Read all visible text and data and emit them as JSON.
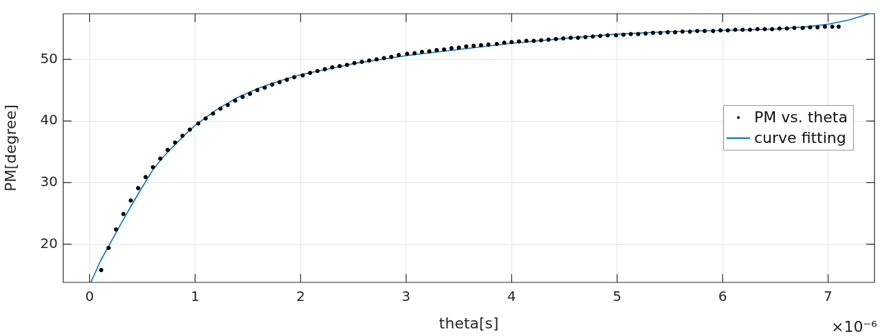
{
  "chart_data": {
    "type": "scatter",
    "xlabel": "theta[s]",
    "ylabel": "PM[degree]",
    "xlim": [
      -0.25,
      7.44
    ],
    "ylim": [
      13.8,
      57.4
    ],
    "xticks": [
      0,
      1,
      2,
      3,
      4,
      5,
      6,
      7
    ],
    "yticks": [
      20,
      30,
      40,
      50
    ],
    "grid": true,
    "legend": "right",
    "annotations": [
      "×10⁻⁶"
    ],
    "series": [
      {
        "name": "PM vs. theta",
        "type": "scatter",
        "marker": "circle",
        "color": "#000000",
        "x": [
          0.11,
          0.18,
          0.25,
          0.32,
          0.39,
          0.46,
          0.53,
          0.6,
          0.67,
          0.74,
          0.81,
          0.88,
          0.95,
          1.03,
          1.1,
          1.17,
          1.24,
          1.31,
          1.38,
          1.45,
          1.52,
          1.59,
          1.66,
          1.73,
          1.8,
          1.87,
          1.94,
          2.02,
          2.09,
          2.16,
          2.23,
          2.3,
          2.37,
          2.44,
          2.51,
          2.58,
          2.65,
          2.72,
          2.79,
          2.86,
          2.93,
          3.01,
          3.08,
          3.15,
          3.22,
          3.29,
          3.36,
          3.43,
          3.5,
          3.57,
          3.64,
          3.71,
          3.78,
          3.86,
          3.93,
          4.0,
          4.07,
          4.14,
          4.21,
          4.28,
          4.35,
          4.42,
          4.49,
          4.56,
          4.63,
          4.7,
          4.77,
          4.84,
          4.91,
          4.99,
          5.06,
          5.13,
          5.2,
          5.27,
          5.34,
          5.41,
          5.48,
          5.55,
          5.62,
          5.69,
          5.76,
          5.83,
          5.91,
          5.98,
          6.05,
          6.12,
          6.19,
          6.26,
          6.33,
          6.4,
          6.47,
          6.54,
          6.61,
          6.68,
          6.76,
          6.83,
          6.9,
          6.97,
          7.04,
          7.1
        ],
        "values": [
          15.8,
          19.4,
          22.4,
          24.9,
          27.1,
          29.1,
          30.9,
          32.5,
          33.9,
          35.3,
          36.5,
          37.6,
          38.6,
          39.6,
          40.4,
          41.2,
          42.0,
          42.6,
          43.3,
          43.9,
          44.4,
          45.0,
          45.4,
          45.9,
          46.3,
          46.7,
          47.1,
          47.4,
          47.8,
          48.1,
          48.4,
          48.7,
          48.9,
          49.1,
          49.4,
          49.6,
          49.8,
          50.0,
          50.2,
          50.4,
          50.7,
          50.9,
          51.0,
          51.2,
          51.3,
          51.5,
          51.6,
          51.8,
          51.9,
          52.1,
          52.2,
          52.3,
          52.4,
          52.5,
          52.7,
          52.8,
          52.9,
          53.0,
          53.0,
          53.1,
          53.2,
          53.3,
          53.4,
          53.5,
          53.5,
          53.6,
          53.7,
          53.8,
          53.9,
          53.9,
          54.0,
          54.1,
          54.1,
          54.2,
          54.3,
          54.3,
          54.4,
          54.4,
          54.5,
          54.5,
          54.6,
          54.6,
          54.6,
          54.7,
          54.7,
          54.8,
          54.8,
          54.8,
          54.9,
          54.9,
          54.9,
          55.0,
          55.0,
          55.1,
          55.1,
          55.2,
          55.2,
          55.3,
          55.3,
          55.3
        ]
      },
      {
        "name": "curve fitting",
        "type": "line",
        "marker": "none",
        "line_style": "solid",
        "color": "#0072bd",
        "x": [
          0.012,
          0.1,
          0.2,
          0.3,
          0.4,
          0.5,
          0.6,
          0.7,
          0.8,
          0.9,
          1.0,
          1.2,
          1.4,
          1.6,
          1.8,
          2.0,
          2.5,
          3.0,
          3.5,
          4.0,
          4.5,
          5.0,
          5.5,
          6.0,
          6.5,
          6.8,
          7.0,
          7.2,
          7.39
        ],
        "values": [
          13.8,
          17.2,
          20.3,
          23.4,
          26.4,
          29.3,
          32.1,
          34.2,
          36.0,
          37.7,
          39.3,
          41.8,
          43.8,
          45.3,
          46.5,
          47.5,
          49.3,
          50.6,
          51.6,
          52.6,
          53.4,
          54.1,
          54.5,
          54.7,
          54.9,
          55.3,
          55.7,
          56.4,
          57.4
        ]
      }
    ]
  }
}
